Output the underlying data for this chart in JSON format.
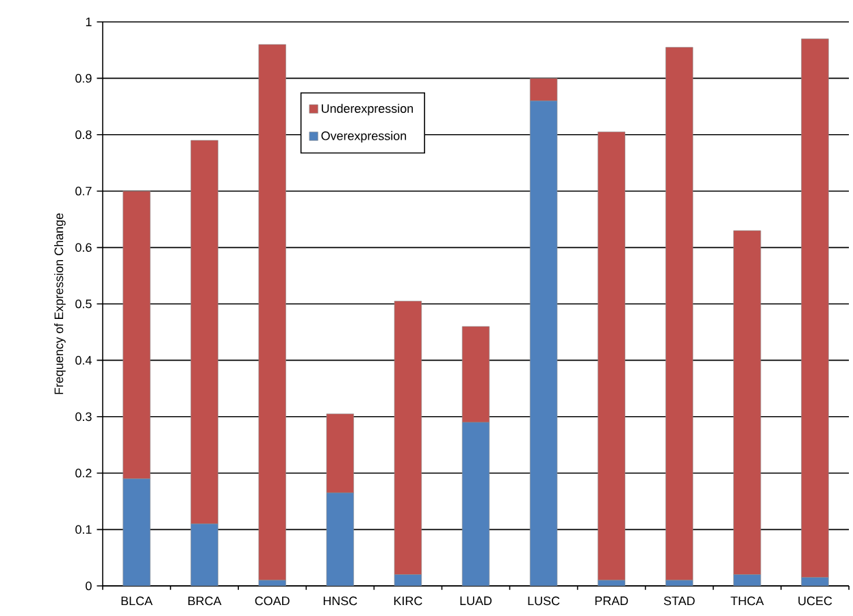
{
  "chart_data": {
    "type": "bar",
    "stacked": true,
    "ylabel": "Frequency of Expression Change",
    "categories": [
      "BLCA",
      "BRCA",
      "COAD",
      "HNSC",
      "KIRC",
      "LUAD",
      "LUSC",
      "PRAD",
      "STAD",
      "THCA",
      "UCEC"
    ],
    "series": [
      {
        "name": "Overexpression",
        "color": "#4f81bd",
        "values": [
          0.19,
          0.11,
          0.01,
          0.165,
          0.02,
          0.29,
          0.86,
          0.01,
          0.01,
          0.02,
          0.015
        ]
      },
      {
        "name": "Underexpression",
        "color": "#c0504d",
        "values": [
          0.51,
          0.68,
          0.95,
          0.14,
          0.485,
          0.17,
          0.04,
          0.795,
          0.945,
          0.61,
          0.955
        ]
      }
    ],
    "ylim": [
      0,
      1
    ],
    "yticks": [
      0,
      0.1,
      0.2,
      0.3,
      0.4,
      0.5,
      0.6,
      0.7,
      0.8,
      0.9,
      1
    ],
    "grid": "y",
    "legend": "top center"
  }
}
